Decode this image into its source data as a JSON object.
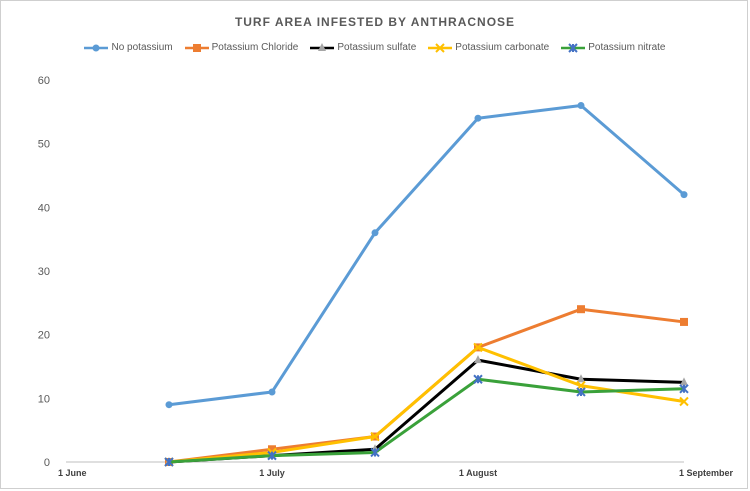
{
  "chart_data": {
    "type": "line",
    "title": "TURF AREA INFESTED BY ANTHRACNOSE",
    "xlabel": "",
    "ylabel": "",
    "ylim": [
      0,
      60
    ],
    "yticks": [
      0,
      10,
      20,
      30,
      40,
      50,
      60
    ],
    "xlim": [
      0,
      3
    ],
    "x_tick_labels": [
      "1 June",
      "1 July",
      "1 August",
      "1 September"
    ],
    "x_tick_values": [
      0,
      1,
      2,
      3
    ],
    "x": [
      0.5,
      1.0,
      1.5,
      2.0,
      2.5,
      3.0
    ],
    "legend_position": "top",
    "grid": false,
    "series": [
      {
        "name": "No potassium",
        "color": "#5b9bd5",
        "marker": "circle",
        "values": [
          9,
          11,
          36,
          54,
          56,
          42
        ]
      },
      {
        "name": "Potassium Chloride",
        "color": "#ed7d31",
        "marker": "square",
        "values": [
          0,
          2,
          4,
          18,
          24,
          22
        ]
      },
      {
        "name": "Potassium sulfate",
        "color": "#000000",
        "marker": "triangle",
        "values": [
          0,
          1,
          2,
          16,
          13,
          12.5
        ]
      },
      {
        "name": "Potassium carbonate",
        "color": "#ffc000",
        "marker": "x",
        "values": [
          0,
          1.5,
          4,
          18,
          12,
          9.5
        ]
      },
      {
        "name": "Potassium nitrate",
        "color": "#3aa13a",
        "marker": "xstar",
        "marker_color": "#4472c4",
        "values": [
          0,
          1,
          1.5,
          13,
          11,
          11.5
        ]
      }
    ]
  }
}
